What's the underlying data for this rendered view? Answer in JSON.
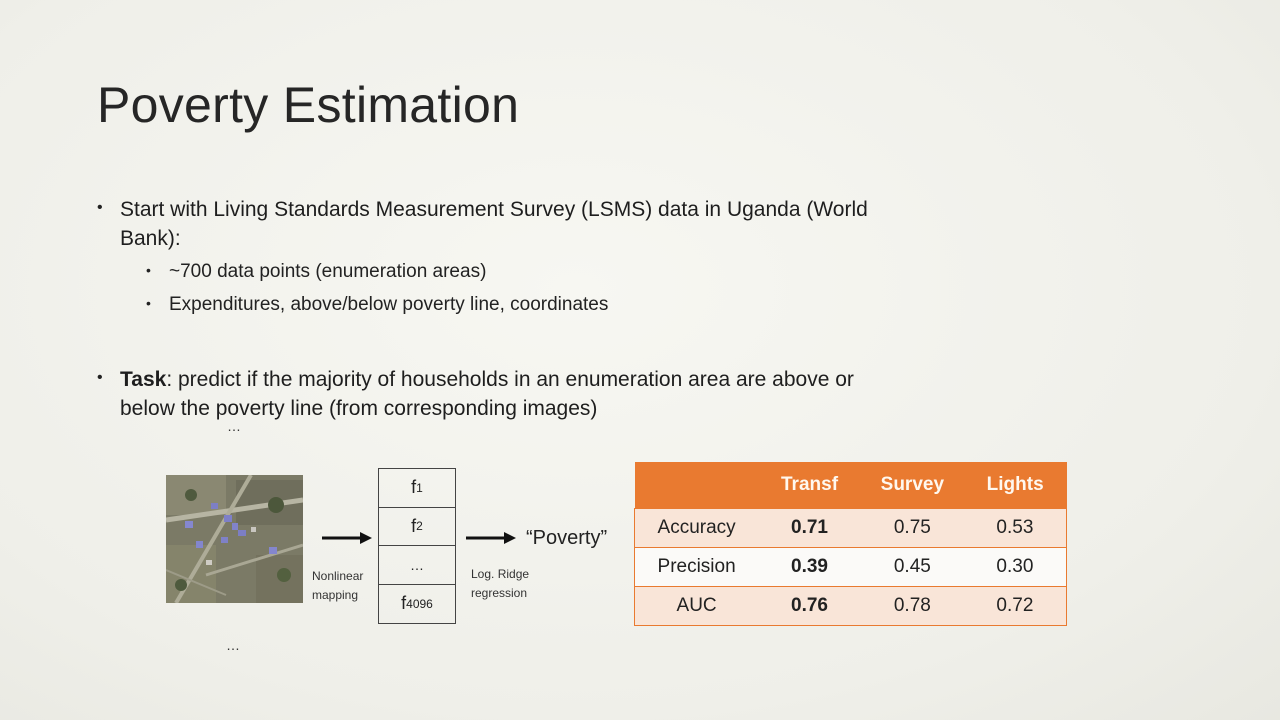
{
  "slide": {
    "title": "Poverty Estimation",
    "bullet1": {
      "line1": "Start with Living Standards Measurement Survey (LSMS) data in Uganda (World",
      "line2": "Bank):"
    },
    "sub_bullets": [
      "~700 data points (enumeration areas)",
      "Expenditures, above/below poverty line, coordinates"
    ],
    "bullet2": {
      "bold": "Task",
      "rest_line1": ": predict if the majority of households in an enumeration area are above or",
      "line2": "below the poverty line (from corresponding images)"
    },
    "ellipsis": "…"
  },
  "diagram": {
    "mapping_label_1": "Nonlinear",
    "mapping_label_2": "mapping",
    "regression_label_1": "Log. Ridge",
    "regression_label_2": "regression",
    "features": [
      {
        "base": "f",
        "sub": "1"
      },
      {
        "base": "f",
        "sub": "2"
      },
      {
        "base": "…",
        "sub": ""
      },
      {
        "base": "f",
        "sub": "4096"
      }
    ],
    "output": "“Poverty”",
    "colors": {
      "arrow": "#111111"
    }
  },
  "results_table": {
    "headers": [
      "",
      "Transf",
      "Survey",
      "Lights"
    ],
    "rows": [
      {
        "metric": "Accuracy",
        "transf": "0.71",
        "survey": "0.75",
        "lights": "0.53"
      },
      {
        "metric": "Precision",
        "transf": "0.39",
        "survey": "0.45",
        "lights": "0.30"
      },
      {
        "metric": "AUC",
        "transf": "0.76",
        "survey": "0.78",
        "lights": "0.72"
      }
    ],
    "colors": {
      "header": "#e97a30",
      "odd_row": "#f9e5d8",
      "even_row": "#fbfaf8"
    }
  }
}
